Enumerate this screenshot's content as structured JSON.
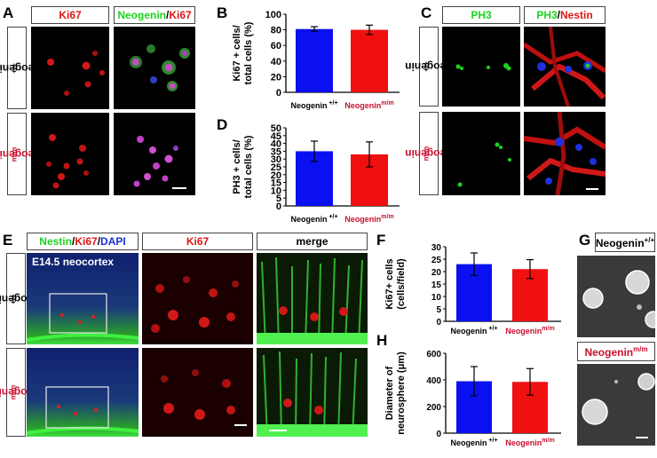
{
  "panels": {
    "A": "A",
    "B": "B",
    "C": "C",
    "D": "D",
    "E": "E",
    "F": "F",
    "G": "G",
    "H": "H"
  },
  "labels": {
    "ki67": "Ki67",
    "neogenin": "Neogenin",
    "slash": "/",
    "pH3": "PH3",
    "nestin": "Nestin",
    "dapi": "DAPI",
    "merge": "merge",
    "e145": "E14.5 neocortex",
    "wt_sup": "+/+",
    "mm_sup": "m/m"
  },
  "colors": {
    "wt": "#0a10f0",
    "mm": "#f01010",
    "green": "#1fd21f",
    "red": "#e01515",
    "blue": "#1a2fd8"
  },
  "chart_data": [
    {
      "panel": "B",
      "type": "bar",
      "categories": [
        "Neogenin+/+",
        "Neogeninm/m"
      ],
      "values": [
        81,
        80
      ],
      "errors": [
        3,
        6
      ],
      "ylim": [
        0,
        100
      ],
      "yticks": [
        0,
        20,
        40,
        60,
        80,
        100
      ],
      "ylabel": "Ki67 + cells/ total cells (%)",
      "ylabel_lines": [
        "Ki67 + cells/",
        "total cells (%)"
      ]
    },
    {
      "panel": "D",
      "type": "bar",
      "categories": [
        "Neogenin+/+",
        "Neogeninm/m"
      ],
      "values": [
        35,
        33
      ],
      "errors": [
        6.5,
        8
      ],
      "ylim": [
        0,
        50
      ],
      "yticks": [
        0,
        5,
        10,
        15,
        20,
        25,
        30,
        35,
        40,
        45,
        50
      ],
      "ylabel": "PH3 + cells/ total cells (%)",
      "ylabel_lines": [
        "PH3 + cells/",
        "total cells (%)"
      ]
    },
    {
      "panel": "F",
      "type": "bar",
      "categories": [
        "Neogenin+/+",
        "Neogeninm/m"
      ],
      "values": [
        23,
        21
      ],
      "errors": [
        4.5,
        3.8
      ],
      "ylim": [
        0,
        30
      ],
      "yticks": [
        0,
        5,
        10,
        15,
        20,
        25,
        30
      ],
      "ylabel": "Ki67+ cells (cells/field)",
      "ylabel_lines": [
        "Ki67+ cells",
        "(cells/field)"
      ]
    },
    {
      "panel": "H",
      "type": "bar",
      "categories": [
        "Neogenin+/+",
        "Neogeninm/m"
      ],
      "values": [
        390,
        385
      ],
      "errors": [
        110,
        100
      ],
      "ylim": [
        0,
        600
      ],
      "yticks": [
        0,
        200,
        400,
        600
      ],
      "ylabel": "Diameter of neurosphere (μm)",
      "ylabel_lines": [
        "Diameter of",
        "neurosphere (μm)"
      ]
    }
  ]
}
